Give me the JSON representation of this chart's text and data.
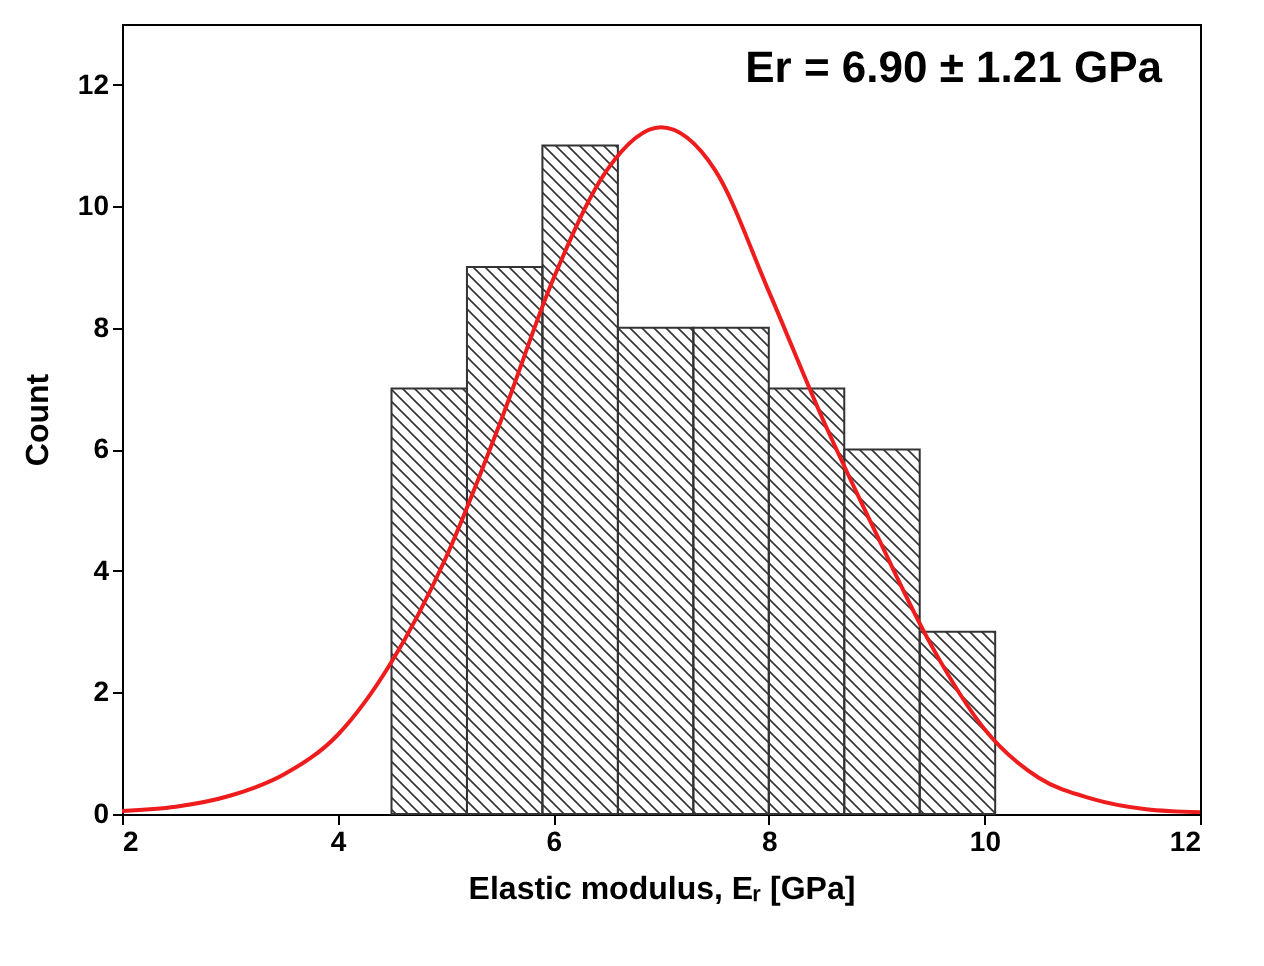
{
  "chart_data": {
    "type": "histogram",
    "xlabel": "Elastic modulus, Eᵣ [GPa]",
    "ylabel": "Count",
    "bins": [
      4.5,
      5.2,
      5.9,
      6.6,
      7.3,
      8.0,
      8.7,
      9.4,
      10.1
    ],
    "values": [
      7,
      9,
      11,
      8,
      8,
      7,
      6,
      3
    ],
    "color": "#333333",
    "series": [
      {
        "type": "line",
        "color": "#ee1c1c",
        "x": [
          2,
          2.5,
          3,
          3.5,
          4,
          4.5,
          5,
          5.5,
          6,
          6.5,
          7,
          7.5,
          8,
          8.5,
          9,
          9.5,
          10,
          10.5,
          11,
          11.5,
          12
        ],
        "values": [
          0.05,
          0.12,
          0.3,
          0.65,
          1.3,
          2.5,
          4.2,
          6.4,
          8.8,
          10.6,
          11.3,
          10.6,
          8.6,
          6.5,
          4.6,
          2.8,
          1.4,
          0.6,
          0.25,
          0.08,
          0.03
        ]
      }
    ],
    "annotations": [
      "Er = 6.90 ± 1.21 GPa"
    ],
    "xlim": [
      2,
      12
    ],
    "xticks": [
      2,
      4,
      6,
      8,
      10,
      12
    ],
    "ylim": [
      0,
      13
    ],
    "yticks": [
      0,
      2,
      4,
      6,
      8,
      10,
      12
    ],
    "grid": false
  }
}
